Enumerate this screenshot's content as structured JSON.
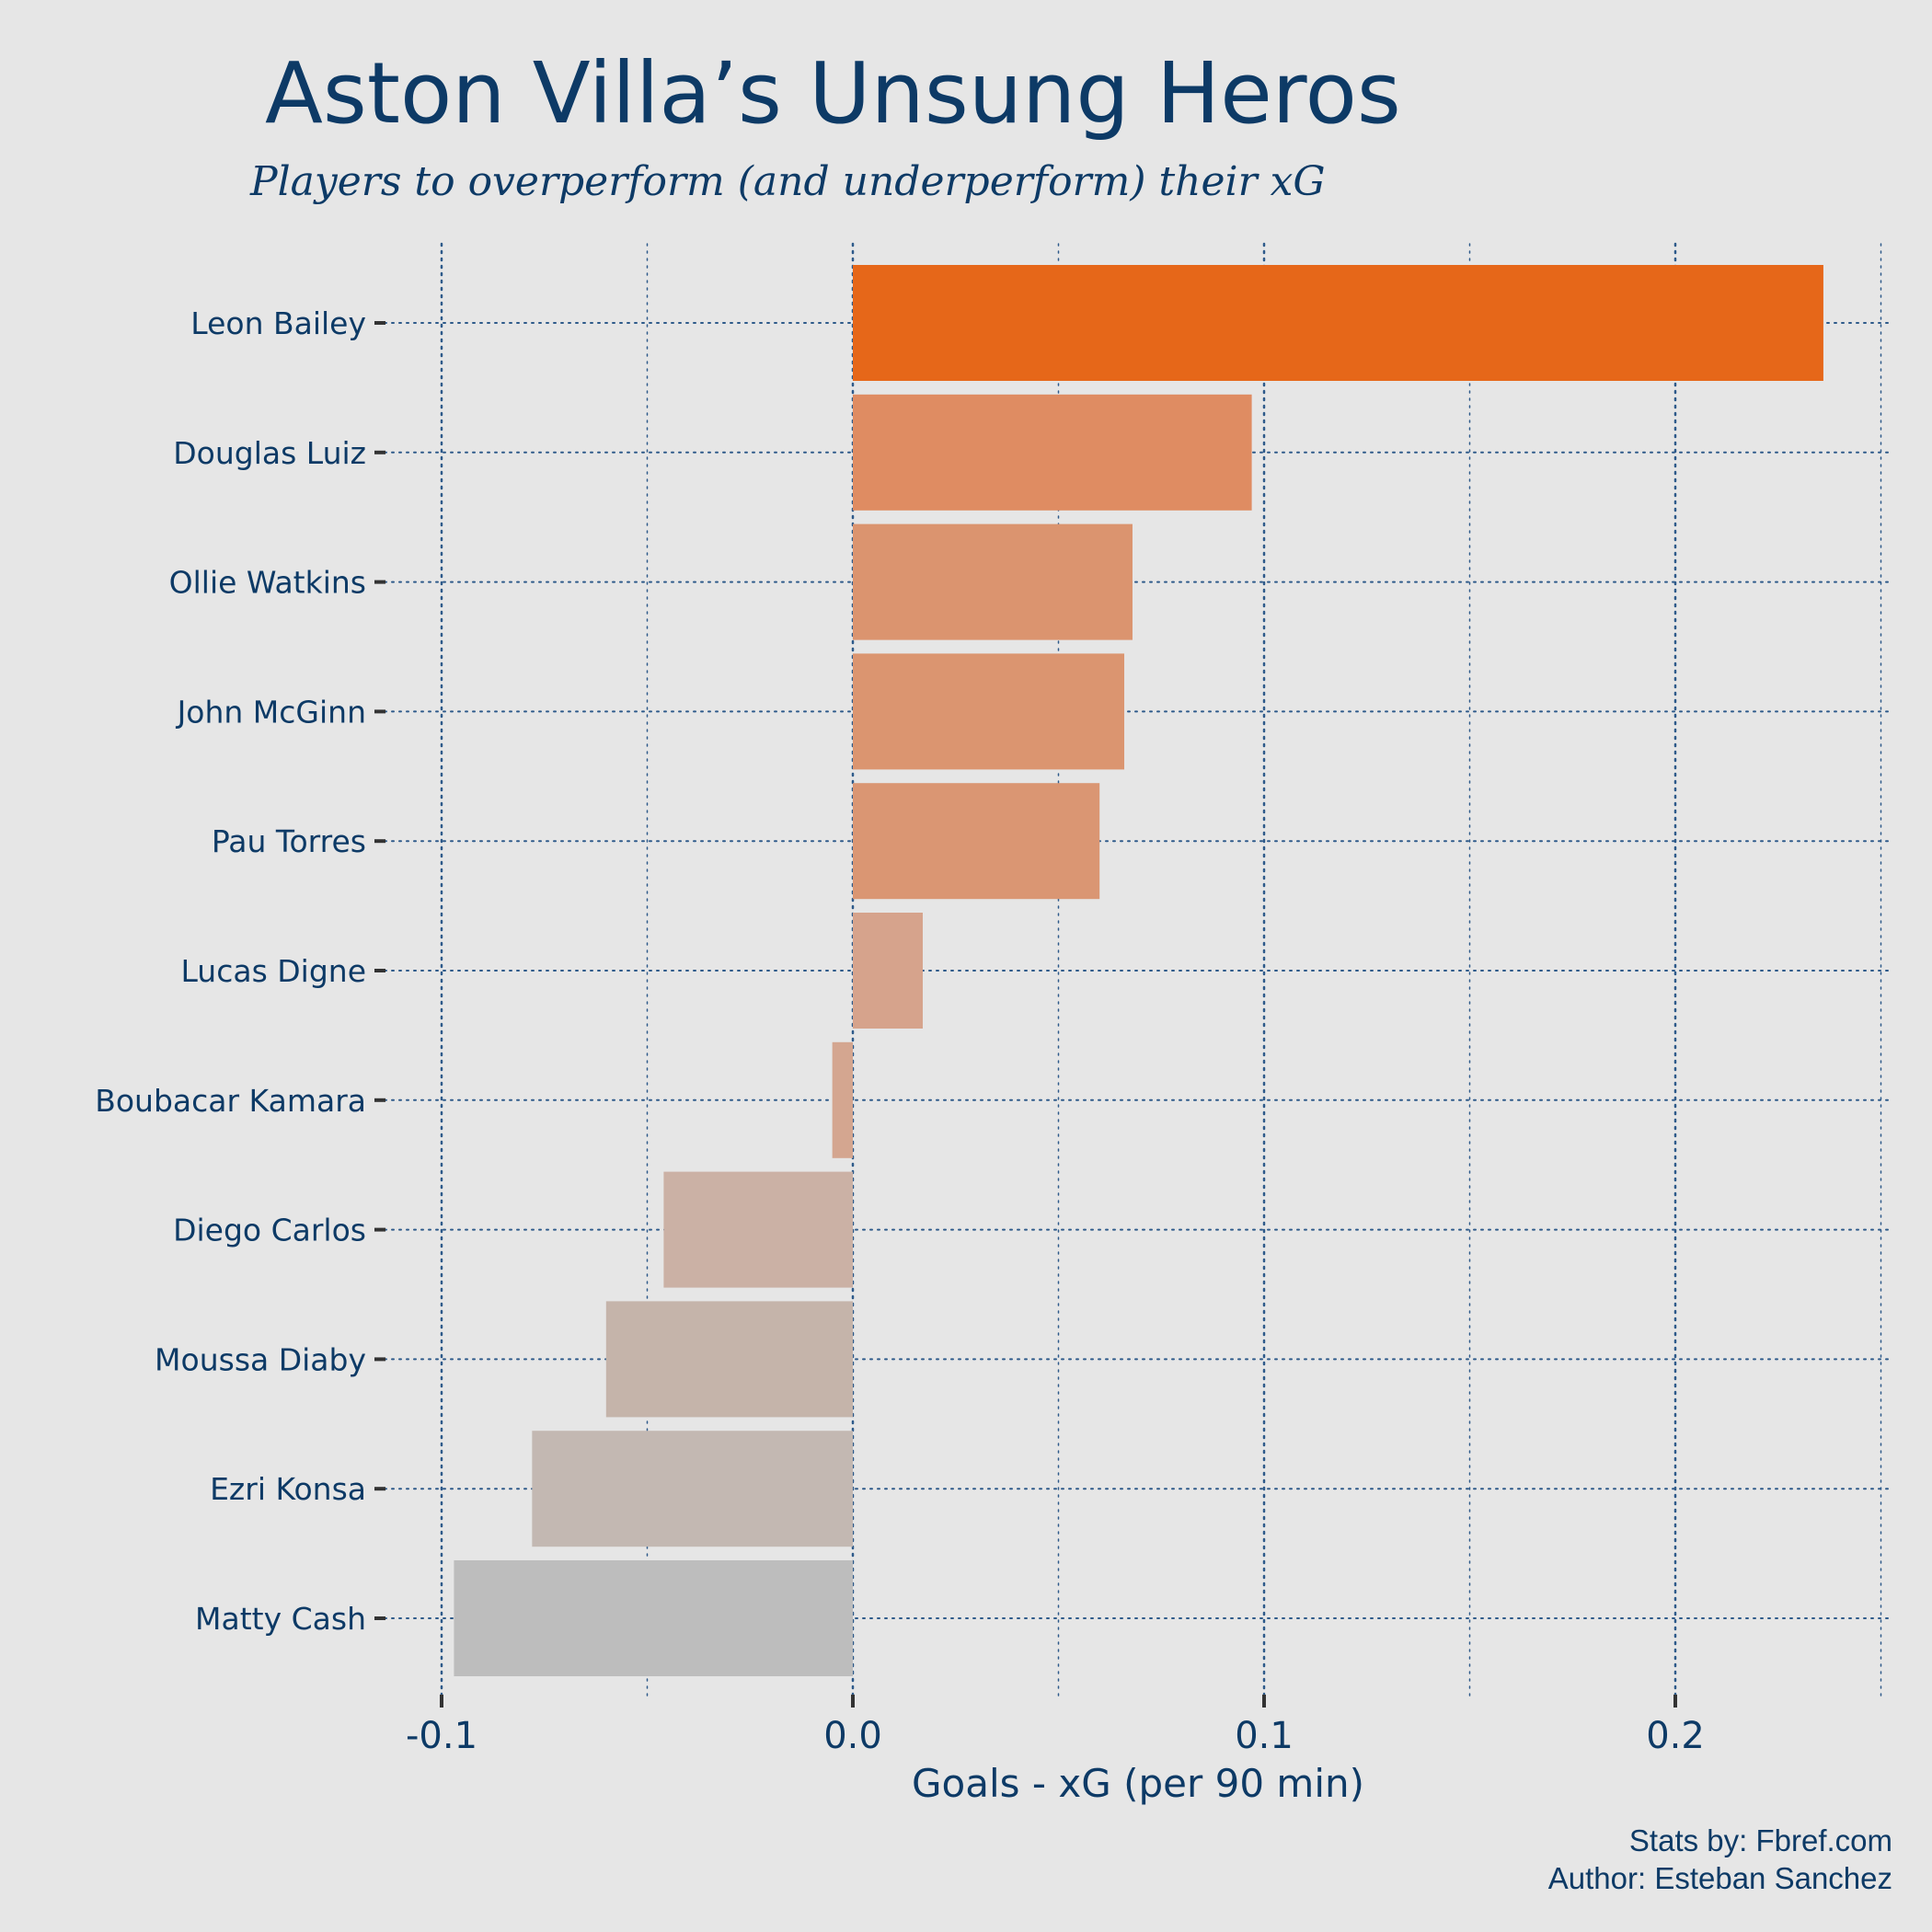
{
  "chart_data": {
    "type": "bar",
    "orientation": "horizontal",
    "title": "Aston Villa’s Unsung Heros",
    "subtitle": "Players to overperform (and underperform) their xG",
    "xlabel": "Goals - xG (per 90 min)",
    "ylabel": "",
    "xlim": [
      -0.1,
      0.25
    ],
    "xticks": [
      -0.1,
      0.0,
      0.1,
      0.2
    ],
    "xtick_labels": [
      "-0.1",
      "0.0",
      "0.1",
      "0.2"
    ],
    "grid": true,
    "legend": "none",
    "categories": [
      "Leon Bailey",
      "Douglas Luiz",
      "Ollie Watkins",
      "John McGinn",
      "Pau Torres",
      "Lucas Digne",
      "Boubacar Kamara",
      "Diego Carlos",
      "Moussa Diaby",
      "Ezri Konsa",
      "Matty Cash"
    ],
    "values": [
      0.236,
      0.097,
      0.068,
      0.066,
      0.06,
      0.017,
      -0.005,
      -0.046,
      -0.06,
      -0.078,
      -0.097
    ],
    "colors": [
      "#e66719",
      "#df8c62",
      "#db946f",
      "#db9570",
      "#da9673",
      "#d6a38c",
      "#d4a690",
      "#cbb1a5",
      "#c5b4aa",
      "#c3b8b2",
      "#bdbdbd"
    ]
  },
  "caption": {
    "line1": "Stats by: Fbref.com",
    "line2": "Author: Esteban Sanchez"
  },
  "colors": {
    "background": "#e6e6e6",
    "text": "#0d3a66",
    "grid": "#2e5a8a"
  }
}
